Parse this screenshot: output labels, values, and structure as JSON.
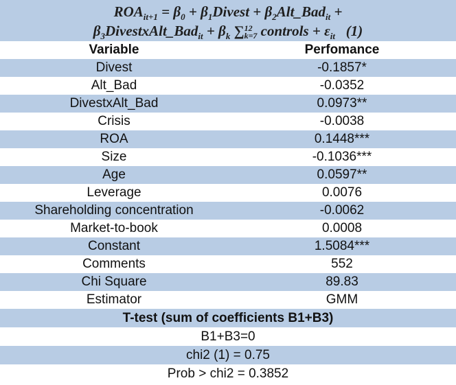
{
  "equation": {
    "lines": [
      [
        {
          "t": "ROA",
          "sub": "it+1"
        },
        {
          "t": " = β",
          "sub": "0"
        },
        {
          "t": " + β",
          "sub": "1"
        },
        {
          "t": "Divest + β",
          "sub": "2"
        },
        {
          "t": "Alt_Bad",
          "sub": "it"
        },
        {
          "t": " +"
        }
      ],
      [
        {
          "t": "β",
          "sub": "3"
        },
        {
          "t": "DivestxAlt_Bad",
          "sub": "it"
        },
        {
          "t": " + β",
          "sub": "k"
        },
        {
          "t": " ∑",
          "sub": "k=7",
          "sup": "12"
        },
        {
          "t": " controls + ε",
          "sub": "it"
        },
        {
          "t": "   (1)"
        }
      ]
    ]
  },
  "table": {
    "header": [
      "Variable",
      "Perfomance"
    ],
    "rows": [
      [
        "Divest",
        "-0.1857*"
      ],
      [
        "Alt_Bad",
        "-0.0352"
      ],
      [
        "DivestxAlt_Bad",
        "0.0973**"
      ],
      [
        "Crisis",
        "-0.0038"
      ],
      [
        "ROA",
        "0.1448***"
      ],
      [
        "Size",
        "-0.1036***"
      ],
      [
        "Age",
        "0.0597**"
      ],
      [
        "Leverage",
        "0.0076"
      ],
      [
        "Shareholding concentration",
        "-0.0062"
      ],
      [
        "Market-to-book",
        "0.0008"
      ],
      [
        "Constant",
        "1.5084***"
      ],
      [
        "Comments",
        "552"
      ],
      [
        "Chi Square",
        "89.83"
      ],
      [
        "Estimator",
        "GMM"
      ]
    ]
  },
  "ttest": {
    "title": "T-test (sum of coefficients B1+B3)",
    "lines": [
      "B1+B3=0",
      "chi2 (1) = 0.75",
      "Prob > chi2 = 0.3852"
    ]
  }
}
